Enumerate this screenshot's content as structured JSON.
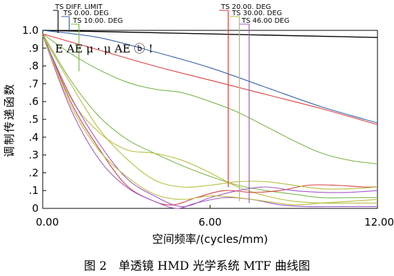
{
  "chart_data": {
    "type": "line",
    "xlabel": "空间频率/(cycles/mm)",
    "ylabel": "调制传递函数",
    "caption": "图 2　单透镜 HMD 光学系统 MTF 曲线图",
    "plot_annotation": "E AE  μ ·    μ AE ⓑ !",
    "xlim": [
      0,
      12
    ],
    "ylim": [
      0,
      1
    ],
    "x_ticks": [
      "0.00",
      "6.00",
      "12.00"
    ],
    "y_ticks": [
      "0",
      ".1",
      ".2",
      ".3",
      ".4",
      ".5",
      ".6",
      ".7",
      ".8",
      ".9",
      "1.0"
    ],
    "legend": [
      {
        "label": "TS DIFF. LIMIT",
        "color": "#000000",
        "marker_x": 0.55
      },
      {
        "label": "TS 0.00. DEG",
        "color": "#2f5fa8",
        "marker_x": 0.95
      },
      {
        "label": "TS 10.00. DEG",
        "color": "#7ab648",
        "marker_x": 1.3
      },
      {
        "label": "TS 20.00. DEG",
        "color": "#d93a3a",
        "marker_x": 6.65
      },
      {
        "label": "TS 30.00. DEG",
        "color": "#b7bd3a",
        "marker_x": 7.05
      },
      {
        "label": "TS 46.00 DEG",
        "color": "#a055c8",
        "marker_x": 7.4
      }
    ],
    "series": [
      {
        "color": "#000000",
        "x": [
          0,
          12
        ],
        "y": [
          1.0,
          0.96
        ]
      },
      {
        "color": "#2f5fa8",
        "x": [
          0,
          2,
          4,
          6,
          8,
          10,
          12
        ],
        "y": [
          1.0,
          0.96,
          0.88,
          0.79,
          0.68,
          0.57,
          0.48
        ]
      },
      {
        "color": "#d93a3a",
        "x": [
          0,
          2,
          4,
          6,
          8,
          10,
          12
        ],
        "y": [
          0.98,
          0.89,
          0.8,
          0.72,
          0.64,
          0.56,
          0.47
        ]
      },
      {
        "color": "#7ab648",
        "x": [
          0,
          1,
          2,
          3,
          4,
          5,
          6,
          7,
          8,
          9,
          10,
          11,
          12
        ],
        "y": [
          0.98,
          0.87,
          0.78,
          0.71,
          0.67,
          0.65,
          0.6,
          0.54,
          0.46,
          0.38,
          0.31,
          0.27,
          0.25
        ]
      },
      {
        "color": "#7ab648",
        "x": [
          0,
          1,
          2,
          3,
          4,
          5,
          6,
          7,
          8,
          9,
          10,
          11,
          12
        ],
        "y": [
          0.98,
          0.72,
          0.52,
          0.39,
          0.31,
          0.24,
          0.18,
          0.13,
          0.1,
          0.08,
          0.06,
          0.06,
          0.06
        ]
      },
      {
        "color": "#b7bd3a",
        "x": [
          0,
          1,
          2,
          3,
          4,
          5,
          6,
          7,
          8,
          9,
          10,
          11,
          12
        ],
        "y": [
          0.98,
          0.62,
          0.43,
          0.33,
          0.31,
          0.27,
          0.2,
          0.12,
          0.07,
          0.04,
          0.03,
          0.03,
          0.03
        ]
      },
      {
        "color": "#d93a3a",
        "x": [
          0,
          1,
          2,
          3,
          4,
          4.7,
          5.5,
          6.5,
          7.5,
          8.5,
          9.5,
          10.5,
          11.5,
          12
        ],
        "y": [
          0.98,
          0.6,
          0.34,
          0.13,
          0.04,
          0.02,
          0.06,
          0.1,
          0.09,
          0.1,
          0.13,
          0.13,
          0.12,
          0.12
        ]
      },
      {
        "color": "#b7bd3a",
        "x": [
          0,
          1,
          2,
          3,
          4,
          5,
          6,
          7,
          8,
          9,
          10,
          11,
          12
        ],
        "y": [
          0.97,
          0.7,
          0.45,
          0.28,
          0.16,
          0.12,
          0.13,
          0.15,
          0.15,
          0.13,
          0.11,
          0.11,
          0.12
        ]
      },
      {
        "color": "#a055c8",
        "x": [
          0,
          1,
          2,
          3,
          4,
          5,
          6,
          7,
          8,
          9,
          10,
          11,
          12
        ],
        "y": [
          0.97,
          0.63,
          0.37,
          0.17,
          0.07,
          0.01,
          0.06,
          0.1,
          0.12,
          0.1,
          0.09,
          0.09,
          0.1
        ]
      },
      {
        "color": "#a055c8",
        "x": [
          0,
          1,
          2,
          3,
          4,
          4.8,
          5.5,
          6.5,
          7.5,
          8.5,
          9.5,
          10.5,
          11.5,
          12
        ],
        "y": [
          0.97,
          0.56,
          0.28,
          0.12,
          0.04,
          0.0,
          0.03,
          0.06,
          0.05,
          0.02,
          0.01,
          0.01,
          0.01,
          0.01
        ]
      },
      {
        "color": "#b7bd3a",
        "x": [
          0,
          1,
          2,
          3,
          4,
          5,
          6,
          7,
          8,
          9,
          10,
          11,
          12
        ],
        "y": [
          0.97,
          0.58,
          0.33,
          0.18,
          0.08,
          0.05,
          0.07,
          0.06,
          0.04,
          0.02,
          0.03,
          0.04,
          0.05
        ]
      }
    ]
  }
}
